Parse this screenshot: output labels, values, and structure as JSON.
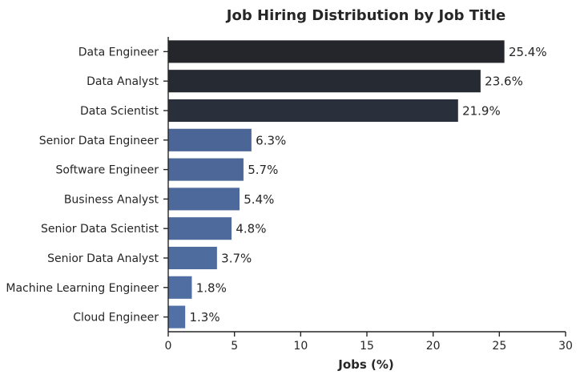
{
  "chart_data": {
    "type": "bar",
    "orientation": "horizontal",
    "title": "Job Hiring Distribution by Job Title",
    "xlabel": "Jobs (%)",
    "ylabel": "",
    "xlim": [
      0,
      30
    ],
    "xticks": [
      0,
      5,
      10,
      15,
      20,
      25,
      30
    ],
    "grid": false,
    "categories": [
      "Data Engineer",
      "Data Analyst",
      "Data Scientist",
      "Senior Data Engineer",
      "Software Engineer",
      "Business Analyst",
      "Senior Data Scientist",
      "Senior Data Analyst",
      "Machine Learning Engineer",
      "Cloud Engineer"
    ],
    "values": [
      25.4,
      23.6,
      21.9,
      6.3,
      5.7,
      5.4,
      4.8,
      3.7,
      1.8,
      1.3
    ],
    "data_labels": [
      "25.4%",
      "23.6%",
      "21.9%",
      "6.3%",
      "5.7%",
      "5.4%",
      "4.8%",
      "3.7%",
      "1.8%",
      "1.3%"
    ],
    "colors": [
      "#25262b",
      "#262a33",
      "#2a2f3c",
      "#4b6597",
      "#4c6798",
      "#4d689a",
      "#4e6a9c",
      "#4f6c9f",
      "#506ea2",
      "#5170a5"
    ]
  }
}
